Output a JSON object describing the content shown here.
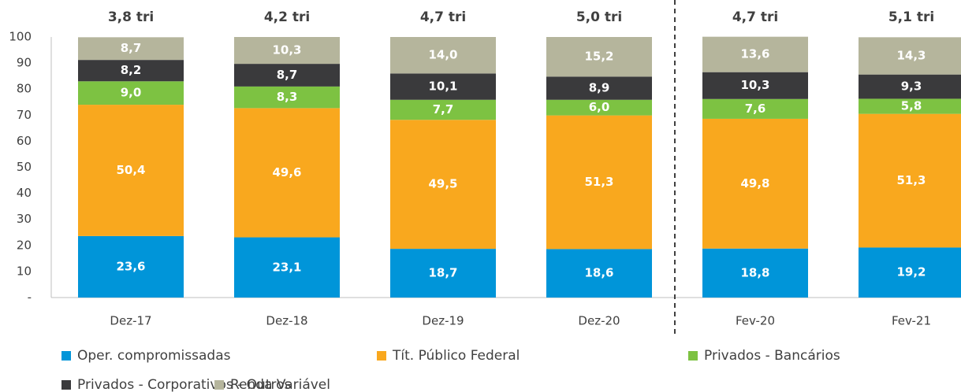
{
  "chart_data": {
    "type": "stacked_bar",
    "categories": [
      "Dez-17",
      "Dez-18",
      "Dez-19",
      "Dez-20",
      "Fev-20",
      "Fev-21"
    ],
    "totals": [
      "3,8 tri",
      "4,2 tri",
      "4,7 tri",
      "5,0 tri",
      "4,7 tri",
      "5,1 tri"
    ],
    "series": [
      {
        "name": "Oper. compromissadas",
        "color": "#0095d9",
        "values": [
          23.6,
          23.1,
          18.7,
          18.6,
          18.8,
          19.2
        ],
        "value_labels": [
          "23,6",
          "23,1",
          "18,7",
          "18,6",
          "18,8",
          "19,2"
        ]
      },
      {
        "name": "Tít. Público Federal",
        "color": "#f9a81e",
        "values": [
          50.4,
          49.6,
          49.5,
          51.3,
          49.8,
          51.3
        ],
        "value_labels": [
          "50,4",
          "49,6",
          "49,5",
          "51,3",
          "49,8",
          "51,3"
        ]
      },
      {
        "name": "Privados - Bancários",
        "color": "#7dc242",
        "values": [
          9.0,
          8.3,
          7.7,
          6.0,
          7.6,
          5.8
        ],
        "value_labels": [
          "9,0",
          "8,3",
          "7,7",
          "6,0",
          "7,6",
          "5,8"
        ]
      },
      {
        "name": "Privados - Corporativos - Outros",
        "color": "#3a3a3c",
        "values": [
          8.2,
          8.7,
          10.1,
          8.9,
          10.3,
          9.3
        ],
        "value_labels": [
          "8,2",
          "8,7",
          "10,1",
          "8,9",
          "10,3",
          "9,3"
        ]
      },
      {
        "name": "Renda Variável",
        "color": "#b5b59c",
        "values": [
          8.7,
          10.3,
          14.0,
          15.2,
          13.6,
          14.3
        ],
        "value_labels": [
          "8,7",
          "10,3",
          "14,0",
          "15,2",
          "13,6",
          "14,3"
        ]
      }
    ],
    "ylim": [
      0,
      100
    ],
    "yticks": [
      {
        "value": 0,
        "label": "-"
      },
      10,
      20,
      30,
      40,
      50,
      60,
      70,
      80,
      90,
      100
    ]
  }
}
